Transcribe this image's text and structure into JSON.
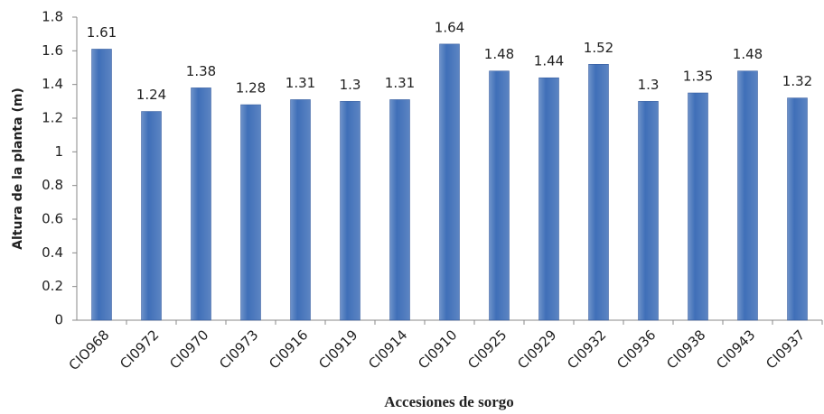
{
  "chart_data": {
    "type": "bar",
    "x_label": "Accesiones de sorgo",
    "y_label": "Altura de la planta (m)",
    "categories": [
      "CIO968",
      "CI0972",
      "CI0970",
      "CI0973",
      "CI0916",
      "CI0919",
      "CI0914",
      "CI0910",
      "CI0925",
      "CI0929",
      "CI0932",
      "CI0936",
      "CI0938",
      "CI0943",
      "CI0937"
    ],
    "values": [
      1.61,
      1.24,
      1.38,
      1.28,
      1.31,
      1.3,
      1.31,
      1.64,
      1.48,
      1.44,
      1.52,
      1.3,
      1.35,
      1.48,
      1.32
    ],
    "color": "#3f6fb8",
    "ylim": [
      0,
      1.8
    ],
    "yticks": [
      0,
      0.2,
      0.4,
      0.6,
      0.8,
      1,
      1.2,
      1.4,
      1.6,
      1.8
    ],
    "grid": false
  }
}
